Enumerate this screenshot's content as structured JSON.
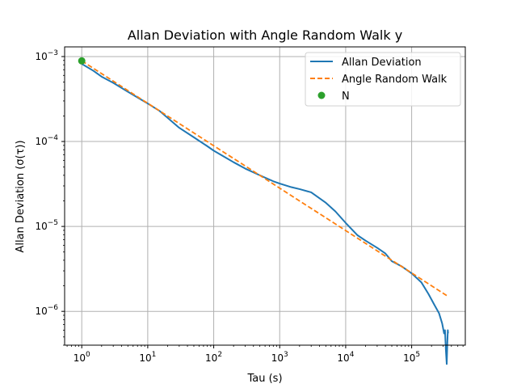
{
  "chart_data": {
    "type": "line",
    "title": "Allan Deviation with Angle Random Walk y",
    "xlabel": "Tau (s)",
    "ylabel": "Allan Deviation (σ(τ))",
    "xscale": "log",
    "yscale": "log",
    "xlim": [
      0.55,
      650000
    ],
    "ylim": [
      4e-07,
      0.0013
    ],
    "grid": true,
    "legend_position": "top-right",
    "x_ticks": [
      {
        "value": 1,
        "mantissa": "10",
        "exp": "0"
      },
      {
        "value": 10,
        "mantissa": "10",
        "exp": "1"
      },
      {
        "value": 100,
        "mantissa": "10",
        "exp": "2"
      },
      {
        "value": 1000,
        "mantissa": "10",
        "exp": "3"
      },
      {
        "value": 10000,
        "mantissa": "10",
        "exp": "4"
      },
      {
        "value": 100000,
        "mantissa": "10",
        "exp": "5"
      }
    ],
    "y_ticks": [
      {
        "value": 0.001,
        "mantissa": "10",
        "exp": "−3"
      },
      {
        "value": 0.0001,
        "mantissa": "10",
        "exp": "−4"
      },
      {
        "value": 1e-05,
        "mantissa": "10",
        "exp": "−5"
      },
      {
        "value": 1e-06,
        "mantissa": "10",
        "exp": "−6"
      }
    ],
    "series": [
      {
        "name": "Allan Deviation",
        "style": "solid",
        "color": "#1f77b4",
        "points": [
          [
            1,
            0.00082
          ],
          [
            1.5,
            0.00068
          ],
          [
            2,
            0.00058
          ],
          [
            3,
            0.00049
          ],
          [
            5,
            0.000385
          ],
          [
            8,
            0.00031
          ],
          [
            10,
            0.00028
          ],
          [
            15,
            0.00023
          ],
          [
            20,
            0.00019
          ],
          [
            30,
            0.000145
          ],
          [
            50,
            0.000112
          ],
          [
            80,
            8.8e-05
          ],
          [
            100,
            7.8e-05
          ],
          [
            150,
            6.5e-05
          ],
          [
            200,
            5.7e-05
          ],
          [
            300,
            4.8e-05
          ],
          [
            500,
            4e-05
          ],
          [
            800,
            3.4e-05
          ],
          [
            1000,
            3.2e-05
          ],
          [
            1500,
            2.9e-05
          ],
          [
            2000,
            2.75e-05
          ],
          [
            3000,
            2.52e-05
          ],
          [
            5000,
            1.9e-05
          ],
          [
            7000,
            1.5e-05
          ],
          [
            10000,
            1.1e-05
          ],
          [
            15000,
            7.9e-06
          ],
          [
            20000,
            6.8e-06
          ],
          [
            30000,
            5.6e-06
          ],
          [
            40000,
            4.8e-06
          ],
          [
            50000,
            3.9e-06
          ],
          [
            70000,
            3.4e-06
          ],
          [
            100000,
            2.8e-06
          ],
          [
            140000,
            2.2e-06
          ],
          [
            180000,
            1.6e-06
          ],
          [
            220000,
            1.2e-06
          ],
          [
            260000,
            9.5e-07
          ],
          [
            290000,
            7.2e-07
          ],
          [
            310000,
            5.5e-07
          ],
          [
            320000,
            6e-07
          ],
          [
            330000,
            3.5e-07
          ],
          [
            340000,
            2.4e-07
          ],
          [
            348000,
            4.5e-07
          ],
          [
            353000,
            6e-07
          ],
          [
            356000,
            5.5e-07
          ]
        ]
      },
      {
        "name": "Angle Random Walk",
        "style": "dashed",
        "color": "#ff7f0e",
        "points": [
          [
            1,
            0.00089
          ],
          [
            356000,
            1.5e-06
          ]
        ]
      },
      {
        "name": "N",
        "style": "marker",
        "color": "#2ca02c",
        "points": [
          [
            1,
            0.00089
          ]
        ]
      }
    ]
  }
}
